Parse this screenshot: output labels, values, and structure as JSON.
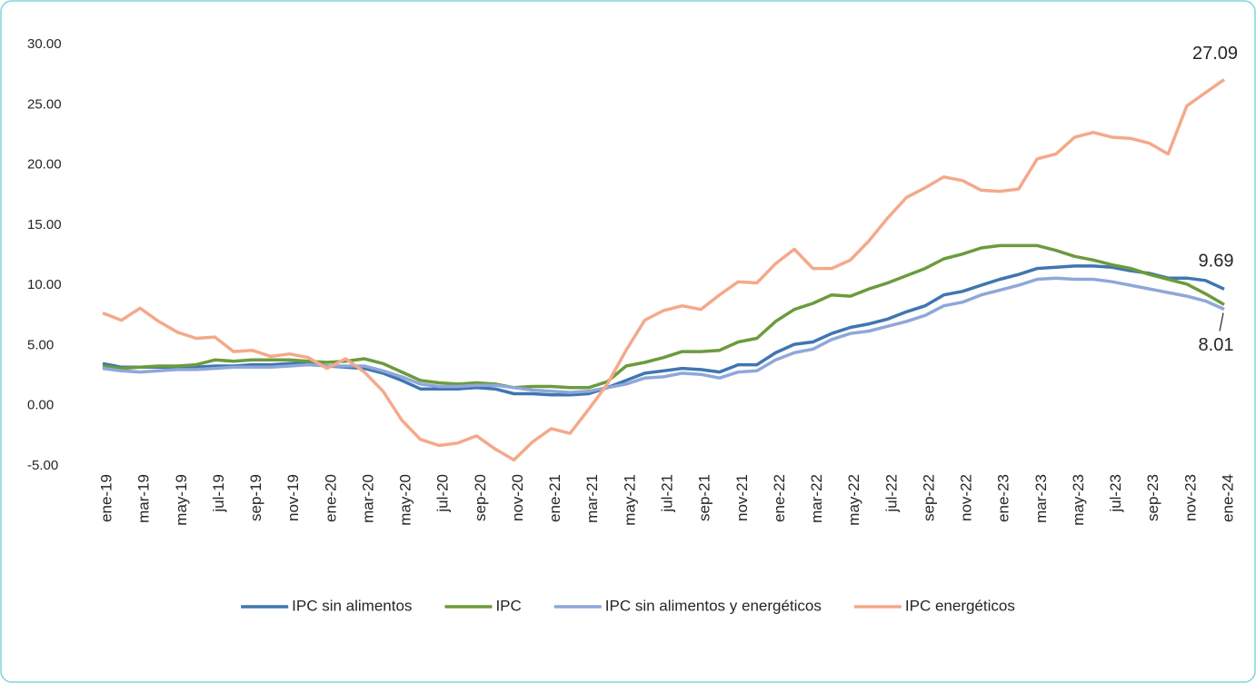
{
  "chart_data": {
    "type": "line",
    "categories": [
      "ene-19",
      null,
      "mar-19",
      null,
      "may-19",
      null,
      "jul-19",
      null,
      "sep-19",
      null,
      "nov-19",
      null,
      "ene-20",
      null,
      "mar-20",
      null,
      "may-20",
      null,
      "jul-20",
      null,
      "sep-20",
      null,
      "nov-20",
      null,
      "ene-21",
      null,
      "mar-21",
      null,
      "may-21",
      null,
      "jul-21",
      null,
      "sep-21",
      null,
      "nov-21",
      null,
      "ene-22",
      null,
      "mar-22",
      null,
      "may-22",
      null,
      "jul-22",
      null,
      "sep-22",
      null,
      "nov-22",
      null,
      "ene-23",
      null,
      "mar-23",
      null,
      "may-23",
      null,
      "jul-23",
      null,
      "sep-23",
      null,
      "nov-23",
      null,
      "ene-24"
    ],
    "series": [
      {
        "name": "IPC sin alimentos",
        "color": "#3f76b1",
        "data_labels": "last",
        "values": [
          3.5,
          3.2,
          3.2,
          3.2,
          3.2,
          3.2,
          3.3,
          3.3,
          3.4,
          3.4,
          3.5,
          3.5,
          3.3,
          3.2,
          3.1,
          2.7,
          2.1,
          1.4,
          1.4,
          1.4,
          1.5,
          1.4,
          1.0,
          1.0,
          0.9,
          0.9,
          1.0,
          1.5,
          2.1,
          2.7,
          2.9,
          3.1,
          3.0,
          2.8,
          3.4,
          3.4,
          4.4,
          5.1,
          5.3,
          6.0,
          6.5,
          6.8,
          7.2,
          7.8,
          8.3,
          9.2,
          9.5,
          10.0,
          10.5,
          10.9,
          11.4,
          11.5,
          11.6,
          11.6,
          11.5,
          11.2,
          11.0,
          10.6,
          10.6,
          10.4,
          9.69
        ]
      },
      {
        "name": "IPC",
        "color": "#6b9b3d",
        "values": [
          3.3,
          3.1,
          3.2,
          3.3,
          3.3,
          3.4,
          3.8,
          3.7,
          3.8,
          3.8,
          3.8,
          3.7,
          3.6,
          3.7,
          3.9,
          3.5,
          2.8,
          2.1,
          1.9,
          1.8,
          1.9,
          1.8,
          1.5,
          1.6,
          1.6,
          1.5,
          1.5,
          2.0,
          3.3,
          3.6,
          4.0,
          4.5,
          4.5,
          4.6,
          5.3,
          5.6,
          7.0,
          8.0,
          8.5,
          9.2,
          9.1,
          9.7,
          10.2,
          10.8,
          11.4,
          12.2,
          12.6,
          13.1,
          13.3,
          13.3,
          13.3,
          12.9,
          12.4,
          12.1,
          11.7,
          11.4,
          10.9,
          10.5,
          10.1,
          9.3,
          8.4
        ]
      },
      {
        "name": "IPC sin alimentos y energéticos",
        "color": "#8fa7d9",
        "data_labels": "last",
        "values": [
          3.1,
          2.9,
          2.8,
          2.9,
          3.0,
          3.0,
          3.1,
          3.2,
          3.2,
          3.2,
          3.3,
          3.4,
          3.3,
          3.3,
          3.3,
          2.9,
          2.4,
          1.8,
          1.6,
          1.6,
          1.7,
          1.7,
          1.5,
          1.3,
          1.2,
          1.1,
          1.2,
          1.5,
          1.8,
          2.3,
          2.4,
          2.7,
          2.6,
          2.3,
          2.8,
          2.9,
          3.8,
          4.4,
          4.7,
          5.5,
          6.0,
          6.2,
          6.6,
          7.0,
          7.5,
          8.3,
          8.6,
          9.2,
          9.6,
          10.0,
          10.5,
          10.6,
          10.5,
          10.5,
          10.3,
          10.0,
          9.7,
          9.4,
          9.1,
          8.7,
          8.01
        ]
      },
      {
        "name": "IPC energéticos",
        "color": "#f4a98a",
        "data_labels": "last",
        "values": [
          7.7,
          7.1,
          8.1,
          7.0,
          6.1,
          5.6,
          5.7,
          4.5,
          4.6,
          4.1,
          4.3,
          4.0,
          3.1,
          3.9,
          2.8,
          1.2,
          -1.2,
          -2.8,
          -3.3,
          -3.1,
          -2.5,
          -3.6,
          -4.5,
          -3.0,
          -1.9,
          -2.3,
          -0.3,
          1.8,
          4.6,
          7.1,
          7.9,
          8.3,
          8.0,
          9.2,
          10.3,
          10.2,
          11.8,
          13.0,
          11.4,
          11.4,
          12.1,
          13.7,
          15.6,
          17.3,
          18.1,
          19.0,
          18.7,
          17.9,
          17.8,
          18.0,
          20.5,
          20.9,
          22.3,
          22.7,
          22.3,
          22.2,
          21.8,
          20.9,
          24.9,
          26.0,
          27.09
        ]
      }
    ],
    "ylim": [
      -5,
      30
    ],
    "yticks": [
      {
        "value": -5,
        "label": "-5.00"
      },
      {
        "value": 0,
        "label": "0.00"
      },
      {
        "value": 5,
        "label": "5.00"
      },
      {
        "value": 10,
        "label": "10.00"
      },
      {
        "value": 15,
        "label": "15.00"
      },
      {
        "value": 20,
        "label": "20.00"
      },
      {
        "value": 25,
        "label": "25.00"
      },
      {
        "value": 30,
        "label": "30.00"
      }
    ],
    "legend": "bottom"
  }
}
